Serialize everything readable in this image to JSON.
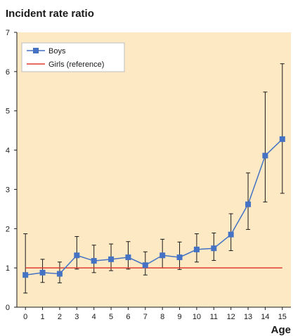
{
  "chart_data": {
    "type": "line",
    "ylabel": "Incident rate ratio",
    "xlabel": "Age",
    "categories": [
      0,
      1,
      2,
      3,
      4,
      5,
      6,
      7,
      8,
      9,
      10,
      11,
      12,
      13,
      14,
      15
    ],
    "xlim": [
      -0.5,
      15.5
    ],
    "ylim": [
      0,
      7
    ],
    "yticks": [
      0,
      1,
      2,
      3,
      4,
      5,
      6,
      7
    ],
    "grid": false,
    "legend_position": "top-left",
    "series": [
      {
        "name": "Boys",
        "color": "#4472c4",
        "marker": "square",
        "values": [
          0.82,
          0.88,
          0.85,
          1.32,
          1.18,
          1.22,
          1.27,
          1.07,
          1.32,
          1.27,
          1.47,
          1.5,
          1.85,
          2.62,
          3.86,
          4.28
        ],
        "ci_low": [
          0.36,
          0.63,
          0.62,
          0.97,
          0.88,
          0.93,
          0.97,
          0.82,
          1.0,
          0.96,
          1.15,
          1.19,
          1.44,
          1.98,
          2.68,
          2.9
        ],
        "ci_high": [
          1.87,
          1.22,
          1.15,
          1.8,
          1.58,
          1.61,
          1.67,
          1.41,
          1.73,
          1.66,
          1.87,
          1.89,
          2.38,
          3.42,
          5.48,
          6.2
        ]
      },
      {
        "name": "Girls (reference)",
        "color": "#e03c31",
        "marker": "none",
        "values": [
          1,
          1,
          1,
          1,
          1,
          1,
          1,
          1,
          1,
          1,
          1,
          1,
          1,
          1,
          1,
          1
        ]
      }
    ],
    "colors": {
      "background": "#fde9c3",
      "axis": "#1a1a1a",
      "error_bar": "#1a1a1a"
    }
  }
}
